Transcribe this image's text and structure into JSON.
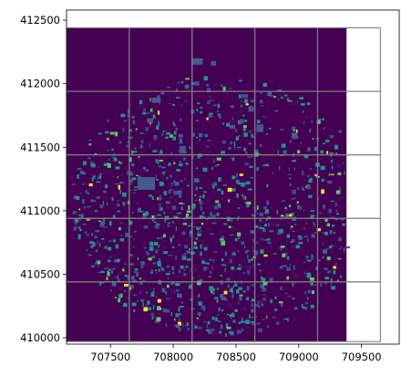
{
  "chart_data": {
    "type": "heatmap",
    "title": "",
    "xlabel": "",
    "ylabel": "",
    "xlim": [
      707150,
      709800
    ],
    "ylim": [
      409950,
      412580
    ],
    "raster": {
      "extent_x": [
        707150,
        709380
      ],
      "extent_y": [
        409970,
        412440
      ],
      "background_color": "#440154",
      "feature_colors": [
        "#3b528b",
        "#21918c",
        "#5ec962",
        "#31688e",
        "#fde725"
      ]
    },
    "grid": {
      "x_lines": [
        707650,
        708150,
        708650,
        709150,
        709650
      ],
      "y_lines": [
        410440,
        410940,
        411440,
        411940,
        412440
      ],
      "x_cells": [
        [
          707150,
          707650
        ],
        [
          707650,
          708150
        ],
        [
          708150,
          708650
        ],
        [
          708650,
          709150
        ],
        [
          709150,
          709650
        ]
      ],
      "y_cells": [
        [
          409970,
          410440
        ],
        [
          410440,
          410940
        ],
        [
          410940,
          411440
        ],
        [
          411440,
          411940
        ],
        [
          411940,
          412440
        ]
      ],
      "color": "#808080"
    },
    "xticks": [
      707500,
      708000,
      708500,
      709000,
      709500
    ],
    "xtick_labels": [
      "707500",
      "708000",
      "708500",
      "709000",
      "709500"
    ],
    "yticks": [
      410000,
      410500,
      411000,
      411500,
      412000,
      412500
    ],
    "ytick_labels": [
      "410000",
      "410500",
      "411000",
      "411500",
      "412000",
      "412500"
    ],
    "large_features": [
      {
        "x": 708190,
        "y": 412175,
        "w": 90,
        "h": 50
      },
      {
        "x": 707865,
        "y": 411870,
        "w": 70,
        "h": 40
      },
      {
        "x": 707815,
        "y": 411710,
        "w": 50,
        "h": 35
      },
      {
        "x": 708060,
        "y": 411590,
        "w": 35,
        "h": 25
      },
      {
        "x": 708075,
        "y": 411480,
        "w": 50,
        "h": 60
      },
      {
        "x": 707785,
        "y": 411215,
        "w": 140,
        "h": 100
      },
      {
        "x": 708470,
        "y": 411660,
        "w": 45,
        "h": 30
      },
      {
        "x": 708620,
        "y": 411800,
        "w": 45,
        "h": 40
      },
      {
        "x": 708690,
        "y": 411650,
        "w": 55,
        "h": 60
      },
      {
        "x": 708965,
        "y": 411590,
        "w": 45,
        "h": 50
      },
      {
        "x": 708320,
        "y": 412160,
        "w": 40,
        "h": 35
      },
      {
        "x": 708470,
        "y": 411820,
        "w": 30,
        "h": 20
      },
      {
        "x": 708400,
        "y": 410310,
        "w": 40,
        "h": 30
      }
    ]
  }
}
